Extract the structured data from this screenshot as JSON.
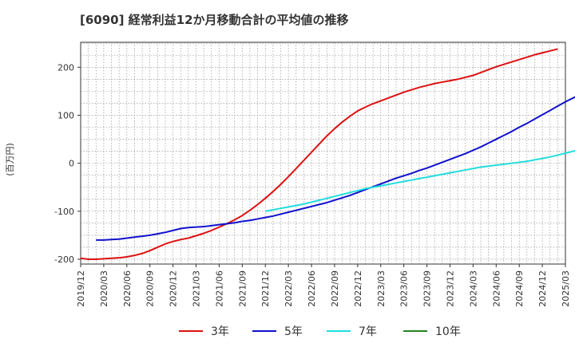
{
  "chart_data": {
    "type": "line",
    "title": "[6090]  経常利益12か月移動合計の平均値の推移",
    "ylabel": "(百万円)",
    "xlabel": "",
    "ylim": [
      -210,
      252
    ],
    "yticks": [
      200,
      100,
      0,
      -100,
      -200
    ],
    "grid": true,
    "legend_placement": "bottom",
    "x_ticks": [
      "2019/12",
      "2020/03",
      "2020/06",
      "2020/09",
      "2020/12",
      "2021/03",
      "2021/06",
      "2021/09",
      "2021/12",
      "2022/03",
      "2022/06",
      "2022/09",
      "2022/12",
      "2023/03",
      "2023/06",
      "2023/09",
      "2023/12",
      "2024/03",
      "2024/06",
      "2024/09",
      "2024/12",
      "2025/03"
    ],
    "series": [
      {
        "name": "3年",
        "color": "#dd1111",
        "start": "2019/12",
        "values": [
          -198,
          -200,
          -200,
          -199,
          -198,
          -197,
          -195,
          -192,
          -188,
          -182,
          -175,
          -168,
          -163,
          -159,
          -156,
          -151,
          -146,
          -140,
          -133,
          -126,
          -118,
          -109,
          -98,
          -86,
          -73,
          -59,
          -44,
          -28,
          -11,
          6,
          23,
          40,
          57,
          72,
          86,
          98,
          109,
          117,
          124,
          130,
          136,
          142,
          148,
          153,
          158,
          162,
          166,
          169,
          172,
          175,
          179,
          183,
          189,
          195,
          201,
          206,
          211,
          216,
          221,
          226,
          230,
          234,
          238
        ]
      },
      {
        "name": "5年",
        "color": "#1111cc",
        "start": "2020/02",
        "values": [
          -160,
          -160,
          -159,
          -158,
          -156,
          -154,
          -152,
          -150,
          -147,
          -144,
          -140,
          -136,
          -134,
          -133,
          -132,
          -130,
          -128,
          -126,
          -124,
          -121,
          -119,
          -116,
          -113,
          -110,
          -106,
          -102,
          -98,
          -94,
          -90,
          -86,
          -82,
          -77,
          -72,
          -67,
          -61,
          -55,
          -49,
          -43,
          -37,
          -31,
          -26,
          -21,
          -15,
          -10,
          -4,
          2,
          8,
          14,
          20,
          27,
          34,
          42,
          50,
          58,
          66,
          75,
          83,
          92,
          101,
          110,
          119,
          128,
          136,
          144,
          152
        ]
      },
      {
        "name": "7年",
        "color": "#22dddd",
        "start": "2021/12",
        "values": [
          -100,
          -97,
          -94,
          -91,
          -88,
          -85,
          -81,
          -77,
          -73,
          -69,
          -65,
          -61,
          -57,
          -53,
          -50,
          -47,
          -44,
          -41,
          -38,
          -35,
          -32,
          -29,
          -26,
          -23,
          -20,
          -17,
          -14,
          -11,
          -8,
          -6,
          -4,
          -2,
          0,
          2,
          4,
          7,
          10,
          13,
          17,
          21,
          25,
          29,
          33,
          37
        ]
      },
      {
        "name": "10年",
        "color": "#228822",
        "start": "2024/12",
        "values": []
      }
    ]
  }
}
